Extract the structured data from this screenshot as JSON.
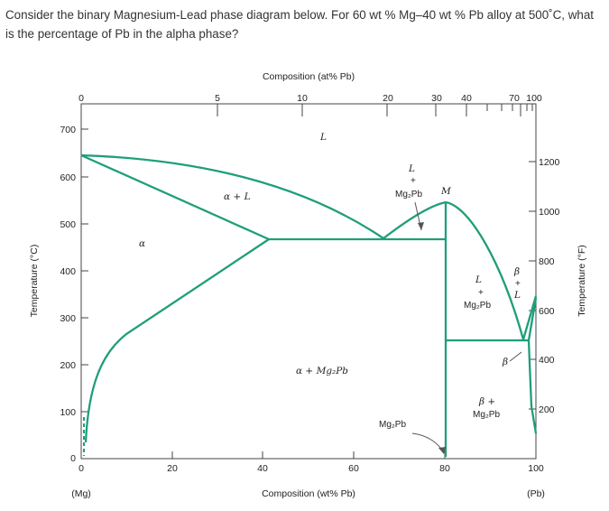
{
  "question": "Consider the binary Magnesium-Lead phase diagram below. For 60 wt % Mg–40 wt % Pb alloy at 500˚C, what is the percentage of Pb in the alpha phase?",
  "diagram": {
    "top_axis_title": "Composition (at% Pb)",
    "bottom_axis_title": "Composition (wt% Pb)",
    "left_axis_title": "Temperature (°C)",
    "right_axis_title": "Temperature (°F)",
    "left_end_label": "(Mg)",
    "right_end_label": "(Pb)",
    "top_ticks": [
      "0",
      "5",
      "10",
      "20",
      "30",
      "40",
      "70",
      "100"
    ],
    "bottom_ticks": [
      "0",
      "20",
      "40",
      "60",
      "80",
      "100"
    ],
    "left_ticks": [
      "0",
      "100",
      "200",
      "300",
      "400",
      "500",
      "600",
      "700"
    ],
    "right_ticks": [
      "200",
      "400",
      "600",
      "800",
      "1000",
      "1200"
    ],
    "regions": {
      "liquid": "L",
      "alpha": "α",
      "alpha_l": "α + L",
      "l_mg2pb_l": "L",
      "l_mg2pb_plus": "+",
      "l_mg2pb": "Mg₂Pb",
      "point_m": "M",
      "alpha_mg2pb": "α + Mg₂Pb",
      "mg2pb_line": "Mg₂Pb",
      "right_l": "L",
      "right_plus": "+",
      "right_mg2pb": "Mg₂Pb",
      "beta_l_1": "β",
      "beta_l_2": "+",
      "beta_l_3": "L",
      "beta": "β",
      "beta_mg2pb_1": "β +",
      "beta_mg2pb_2": "Mg₂Pb"
    },
    "colors": {
      "phase_line": "#1f9e7a",
      "axis": "#444444",
      "arrow": "#555555"
    }
  }
}
